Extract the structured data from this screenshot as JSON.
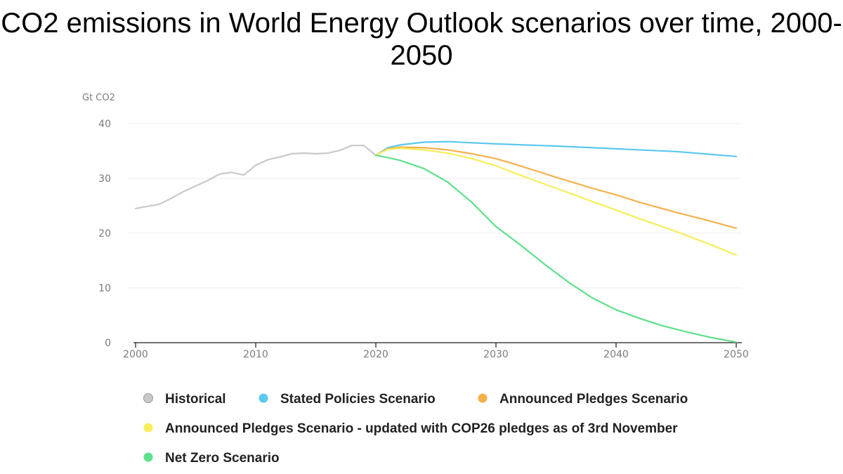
{
  "chart_data": {
    "type": "line",
    "title": "CO2 emissions in World Energy Outlook scenarios over time, 2000-2050",
    "ylabel": "Gt CO2",
    "xlabel": "",
    "xlim": [
      2000,
      2050
    ],
    "ylim": [
      0,
      40
    ],
    "x_ticks": [
      2000,
      2010,
      2020,
      2030,
      2040,
      2050
    ],
    "y_ticks": [
      0,
      10,
      20,
      30,
      40
    ],
    "grid": "horizontal",
    "legend_position": "bottom",
    "series": [
      {
        "name": "Historical",
        "color": "#c9c9c9",
        "points": [
          [
            2000,
            24.5
          ],
          [
            2001,
            24.9
          ],
          [
            2002,
            25.3
          ],
          [
            2003,
            26.4
          ],
          [
            2004,
            27.6
          ],
          [
            2005,
            28.6
          ],
          [
            2006,
            29.6
          ],
          [
            2007,
            30.8
          ],
          [
            2008,
            31.1
          ],
          [
            2009,
            30.6
          ],
          [
            2010,
            32.4
          ],
          [
            2011,
            33.4
          ],
          [
            2012,
            33.9
          ],
          [
            2013,
            34.5
          ],
          [
            2014,
            34.6
          ],
          [
            2015,
            34.5
          ],
          [
            2016,
            34.6
          ],
          [
            2017,
            35.1
          ],
          [
            2018,
            36.0
          ],
          [
            2019,
            36.0
          ],
          [
            2020,
            34.2
          ]
        ]
      },
      {
        "name": "Stated Policies Scenario",
        "color": "#5bc8f0",
        "points": [
          [
            2020,
            34.2
          ],
          [
            2021,
            35.6
          ],
          [
            2022,
            36.1
          ],
          [
            2024,
            36.6
          ],
          [
            2026,
            36.7
          ],
          [
            2028,
            36.5
          ],
          [
            2030,
            36.3
          ],
          [
            2035,
            35.9
          ],
          [
            2040,
            35.4
          ],
          [
            2045,
            34.9
          ],
          [
            2050,
            34.0
          ]
        ]
      },
      {
        "name": "Announced Pledges Scenario",
        "color": "#f5b04a",
        "points": [
          [
            2020,
            34.2
          ],
          [
            2021,
            35.4
          ],
          [
            2022,
            35.7
          ],
          [
            2024,
            35.6
          ],
          [
            2026,
            35.2
          ],
          [
            2028,
            34.5
          ],
          [
            2030,
            33.6
          ],
          [
            2032,
            32.3
          ],
          [
            2035,
            30.2
          ],
          [
            2038,
            28.2
          ],
          [
            2040,
            27.0
          ],
          [
            2042,
            25.6
          ],
          [
            2045,
            23.8
          ],
          [
            2048,
            22.1
          ],
          [
            2050,
            20.9
          ]
        ]
      },
      {
        "name": "Announced Pledges Scenario - updated with COP26 pledges as of 3rd November",
        "color": "#f7ee5a",
        "points": [
          [
            2020,
            34.2
          ],
          [
            2021,
            35.3
          ],
          [
            2022,
            35.5
          ],
          [
            2024,
            35.2
          ],
          [
            2026,
            34.6
          ],
          [
            2028,
            33.6
          ],
          [
            2030,
            32.3
          ],
          [
            2032,
            30.6
          ],
          [
            2035,
            28.2
          ],
          [
            2038,
            25.8
          ],
          [
            2040,
            24.2
          ],
          [
            2042,
            22.6
          ],
          [
            2045,
            20.3
          ],
          [
            2048,
            17.8
          ],
          [
            2050,
            16.0
          ]
        ]
      },
      {
        "name": "Net Zero Scenario",
        "color": "#5ee08a",
        "points": [
          [
            2020,
            34.2
          ],
          [
            2021,
            33.8
          ],
          [
            2022,
            33.3
          ],
          [
            2024,
            31.8
          ],
          [
            2026,
            29.3
          ],
          [
            2028,
            25.6
          ],
          [
            2030,
            21.2
          ],
          [
            2032,
            17.9
          ],
          [
            2034,
            14.4
          ],
          [
            2036,
            11.1
          ],
          [
            2038,
            8.2
          ],
          [
            2040,
            6.0
          ],
          [
            2042,
            4.4
          ],
          [
            2044,
            3.0
          ],
          [
            2046,
            1.9
          ],
          [
            2048,
            0.9
          ],
          [
            2050,
            0.1
          ]
        ]
      }
    ]
  }
}
